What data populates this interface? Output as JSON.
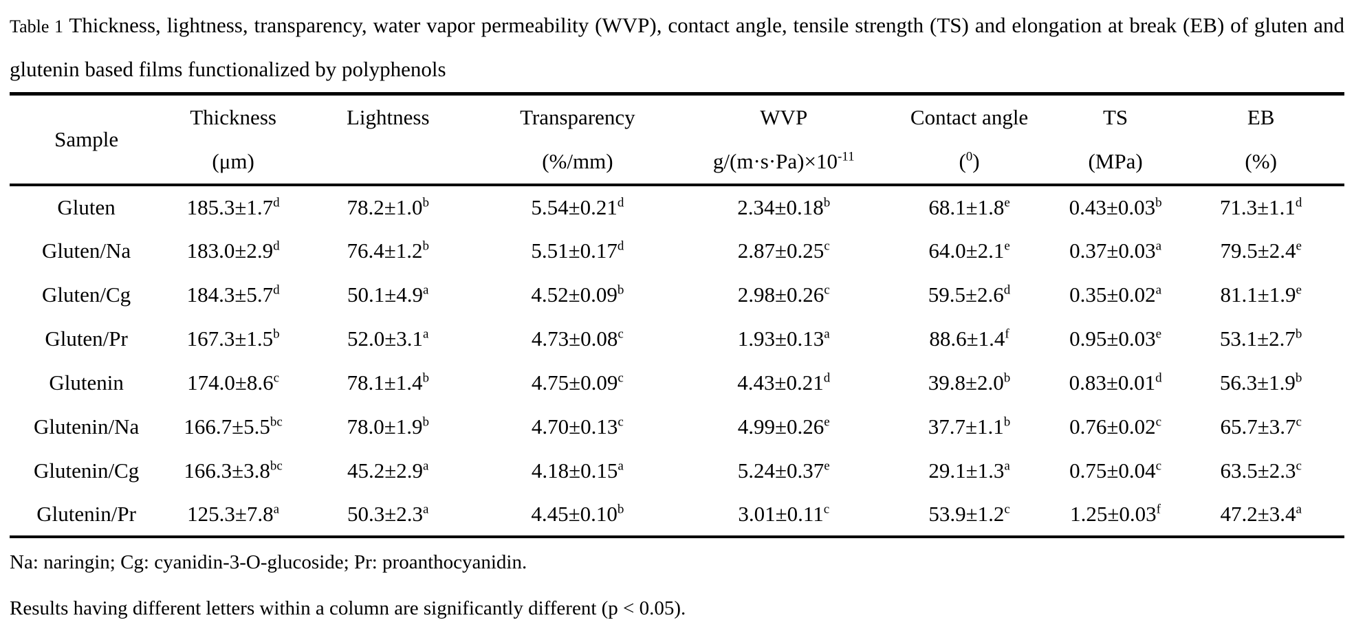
{
  "caption": {
    "prefix": "Table 1",
    "line1": " Thickness, lightness, transparency, water vapor permeability (WVP), contact angle, tensile strength (TS) and elongation at break (EB) of gluten and",
    "line2": "glutenin based films functionalized by polyphenols"
  },
  "table": {
    "columns": [
      {
        "key": "sample",
        "label": "Sample",
        "unit_pre": "",
        "unit_sup": "",
        "unit_post": ""
      },
      {
        "key": "thickness",
        "label": "Thickness",
        "unit_pre": "(μm)",
        "unit_sup": "",
        "unit_post": ""
      },
      {
        "key": "lightness",
        "label": "Lightness",
        "unit_pre": "",
        "unit_sup": "",
        "unit_post": ""
      },
      {
        "key": "transparency",
        "label": "Transparency",
        "unit_pre": "(%/mm)",
        "unit_sup": "",
        "unit_post": ""
      },
      {
        "key": "wvp",
        "label": "WVP",
        "unit_pre": "g/(m·s·Pa)×10",
        "unit_sup": "-11",
        "unit_post": ""
      },
      {
        "key": "contact_angle",
        "label": "Contact angle",
        "unit_pre": "(",
        "unit_sup": "0",
        "unit_post": ")"
      },
      {
        "key": "ts",
        "label": "TS",
        "unit_pre": "(MPa)",
        "unit_sup": "",
        "unit_post": ""
      },
      {
        "key": "eb",
        "label": "EB",
        "unit_pre": "(%)",
        "unit_sup": "",
        "unit_post": ""
      }
    ],
    "rows": [
      {
        "sample": "Gluten",
        "values": [
          {
            "v": "185.3±1.7",
            "s": "d"
          },
          {
            "v": "78.2±1.0",
            "s": "b"
          },
          {
            "v": "5.54±0.21",
            "s": "d"
          },
          {
            "v": "2.34±0.18",
            "s": "b"
          },
          {
            "v": "68.1±1.8",
            "s": "e"
          },
          {
            "v": "0.43±0.03",
            "s": "b"
          },
          {
            "v": "71.3±1.1",
            "s": "d"
          }
        ]
      },
      {
        "sample": "Gluten/Na",
        "values": [
          {
            "v": "183.0±2.9",
            "s": "d"
          },
          {
            "v": "76.4±1.2",
            "s": "b"
          },
          {
            "v": "5.51±0.17",
            "s": "d"
          },
          {
            "v": "2.87±0.25",
            "s": "c"
          },
          {
            "v": "64.0±2.1",
            "s": "e"
          },
          {
            "v": "0.37±0.03",
            "s": "a"
          },
          {
            "v": "79.5±2.4",
            "s": "e"
          }
        ]
      },
      {
        "sample": "Gluten/Cg",
        "values": [
          {
            "v": "184.3±5.7",
            "s": "d"
          },
          {
            "v": "50.1±4.9",
            "s": "a"
          },
          {
            "v": "4.52±0.09",
            "s": "b"
          },
          {
            "v": "2.98±0.26",
            "s": "c"
          },
          {
            "v": "59.5±2.6",
            "s": "d"
          },
          {
            "v": "0.35±0.02",
            "s": "a"
          },
          {
            "v": "81.1±1.9",
            "s": "e"
          }
        ]
      },
      {
        "sample": "Gluten/Pr",
        "values": [
          {
            "v": "167.3±1.5",
            "s": "b"
          },
          {
            "v": "52.0±3.1",
            "s": "a"
          },
          {
            "v": "4.73±0.08",
            "s": "c"
          },
          {
            "v": "1.93±0.13",
            "s": "a"
          },
          {
            "v": "88.6±1.4",
            "s": "f"
          },
          {
            "v": "0.95±0.03",
            "s": "e"
          },
          {
            "v": "53.1±2.7",
            "s": "b"
          }
        ]
      },
      {
        "sample": "Glutenin",
        "values": [
          {
            "v": "174.0±8.6",
            "s": "c"
          },
          {
            "v": "78.1±1.4",
            "s": "b"
          },
          {
            "v": "4.75±0.09",
            "s": "c"
          },
          {
            "v": "4.43±0.21",
            "s": "d"
          },
          {
            "v": "39.8±2.0",
            "s": "b"
          },
          {
            "v": "0.83±0.01",
            "s": "d"
          },
          {
            "v": "56.3±1.9",
            "s": "b"
          }
        ]
      },
      {
        "sample": "Glutenin/Na",
        "values": [
          {
            "v": "166.7±5.5",
            "s": "bc"
          },
          {
            "v": "78.0±1.9",
            "s": "b"
          },
          {
            "v": "4.70±0.13",
            "s": "c"
          },
          {
            "v": "4.99±0.26",
            "s": "e"
          },
          {
            "v": "37.7±1.1",
            "s": "b"
          },
          {
            "v": "0.76±0.02",
            "s": "c"
          },
          {
            "v": "65.7±3.7",
            "s": "c"
          }
        ]
      },
      {
        "sample": "Glutenin/Cg",
        "values": [
          {
            "v": "166.3±3.8",
            "s": "bc"
          },
          {
            "v": "45.2±2.9",
            "s": "a"
          },
          {
            "v": "4.18±0.15",
            "s": "a"
          },
          {
            "v": "5.24±0.37",
            "s": "e"
          },
          {
            "v": "29.1±1.3",
            "s": "a"
          },
          {
            "v": "0.75±0.04",
            "s": "c"
          },
          {
            "v": "63.5±2.3",
            "s": "c"
          }
        ]
      },
      {
        "sample": "Glutenin/Pr",
        "values": [
          {
            "v": "125.3±7.8",
            "s": "a"
          },
          {
            "v": "50.3±2.3",
            "s": "a"
          },
          {
            "v": "4.45±0.10",
            "s": "b"
          },
          {
            "v": "3.01±0.11",
            "s": "c"
          },
          {
            "v": "53.9±1.2",
            "s": "c"
          },
          {
            "v": "1.25±0.03",
            "s": "f"
          },
          {
            "v": "47.2±3.4",
            "s": "a"
          }
        ]
      }
    ]
  },
  "footnotes": [
    "Na: naringin; Cg: cyanidin-3-O-glucoside; Pr: proanthocyanidin.",
    "Results having different letters within a column are significantly different (p < 0.05)."
  ],
  "colors": {
    "text": "#000000",
    "background": "#ffffff",
    "rule": "#000000"
  }
}
